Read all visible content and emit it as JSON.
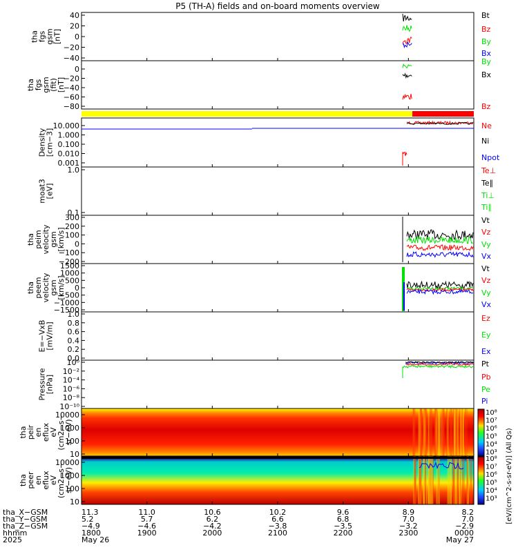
{
  "title": "P5 (TH-A) fields and on-board moments overview",
  "colors": {
    "black": "#000000",
    "red": "#ff0000",
    "green": "#00e000",
    "blue": "#0000ff",
    "yellow": "#ffff00"
  },
  "chart_data": [
    {
      "type": "line",
      "ylabel": "tha fgs gsm [nT]",
      "ylim": [
        -40,
        40
      ],
      "yticks": [
        "40",
        "20",
        "0",
        "−20",
        "−40"
      ],
      "legend": [
        {
          "label": "Bt",
          "color": "#000000"
        },
        {
          "label": "Bz",
          "color": "#ff0000"
        },
        {
          "label": "By",
          "color": "#00e000"
        },
        {
          "label": "Bx",
          "color": "#0000ff"
        }
      ]
    },
    {
      "type": "line",
      "ylabel": "tha fgs gsm (fit) [nT]",
      "ylim": [
        -90,
        10
      ],
      "yticks": [
        "0",
        "−20",
        "−40",
        "−60",
        "−80"
      ],
      "legend": [
        {
          "label": "By",
          "color": "#00e000"
        },
        {
          "label": "Bx",
          "color": "#000000"
        },
        {
          "label": "Bz",
          "color": "#ff0000"
        }
      ]
    },
    {
      "type": "bar",
      "ylabel": "",
      "segments": [
        {
          "from": "1800",
          "to": "2300",
          "color": "#ffff00"
        },
        {
          "from": "2300",
          "to": "0000",
          "color": "#ff0000"
        }
      ]
    },
    {
      "type": "line",
      "ylabel": "Density [cm-3]",
      "log": true,
      "yticks": [
        "10.000",
        "1.000",
        "0.100",
        "0.010",
        "0.001"
      ],
      "legend": [
        {
          "label": "Ne",
          "color": "#ff0000"
        },
        {
          "label": "Ni",
          "color": "#000000"
        },
        {
          "label": "Npot",
          "color": "#0000ff"
        }
      ]
    },
    {
      "type": "line",
      "ylabel": "moat3 [eV]",
      "log": true,
      "yticks": [
        "1.0",
        "0.1"
      ],
      "legend": [
        {
          "label": "Te⊥",
          "color": "#ff0000"
        },
        {
          "label": "Te∥",
          "color": "#000000"
        },
        {
          "label": "Ti⊥",
          "color": "#00e000"
        },
        {
          "label": "Ti∥",
          "color": "#00e000"
        }
      ]
    },
    {
      "type": "line",
      "ylabel": "tha peim velocity gsm [km/s]",
      "ylim": [
        -200,
        350
      ],
      "yticks": [
        "300",
        "200",
        "100",
        "0",
        "−100",
        "−200"
      ],
      "legend": [
        {
          "label": "Vt",
          "color": "#000000"
        },
        {
          "label": "Vz",
          "color": "#ff0000"
        },
        {
          "label": "Vy",
          "color": "#00e000"
        },
        {
          "label": "Vx",
          "color": "#0000ff"
        }
      ]
    },
    {
      "type": "line",
      "ylabel": "tha peem velocity gsm [km/s]",
      "ylim": [
        -1500,
        1500
      ],
      "yticks": [
        "1500",
        "1000",
        "500",
        "0",
        "−500",
        "−1000",
        "−1500"
      ],
      "legend": [
        {
          "label": "Vt",
          "color": "#000000"
        },
        {
          "label": "Vz",
          "color": "#ff0000"
        },
        {
          "label": "Vy",
          "color": "#00e000"
        },
        {
          "label": "Vx",
          "color": "#0000ff"
        }
      ]
    },
    {
      "type": "line",
      "ylabel": "E=−VxB [mV/m]",
      "ylim": [
        0,
        1
      ],
      "yticks": [
        "1.0",
        "0.8",
        "0.6",
        "0.4",
        "0.2",
        "0.0"
      ],
      "legend": [
        {
          "label": "Ez",
          "color": "#ff0000"
        },
        {
          "label": "Ey",
          "color": "#00e000"
        },
        {
          "label": "Ex",
          "color": "#0000ff"
        }
      ]
    },
    {
      "type": "line",
      "ylabel": "Pressure [nPa]",
      "log": true,
      "yticks": [
        "10⁰",
        "10⁻²",
        "10⁻⁴",
        "10⁻⁶",
        "10⁻⁸",
        "10⁻¹⁰"
      ],
      "legend": [
        {
          "label": "Pt",
          "color": "#000000"
        },
        {
          "label": "Pb",
          "color": "#ff0000"
        },
        {
          "label": "Pe",
          "color": "#00e000"
        },
        {
          "label": "Pi",
          "color": "#0000ff"
        }
      ]
    },
    {
      "type": "heatmap",
      "ylabel": "tha peir en eflux eV (cm2-s-sr-eV)",
      "log": true,
      "yticks": [
        "10000",
        "1000",
        "100",
        "10"
      ]
    },
    {
      "type": "heatmap",
      "ylabel": "tha peer en eflux eV (cm2-s-sr-eV)",
      "log": true,
      "yticks": [
        "10000",
        "1000",
        "100",
        "10"
      ]
    }
  ],
  "colorbar": {
    "label": "[eV/(cm^2-s-sr-eV)] (All Qs)",
    "ticks_top": [
      "10⁸",
      "10⁷",
      "10⁶",
      "10⁵",
      "10⁴",
      "10³"
    ],
    "ticks_bottom": [
      "10⁸",
      "10⁷",
      "10⁶",
      "10⁵",
      "10⁴",
      "10³"
    ]
  },
  "footer": {
    "row_labels": [
      "tha_X−GSM",
      "tha_Y−GSM",
      "tha_Z−GSM",
      "hhmm",
      "2025"
    ],
    "columns": [
      {
        "x": "11.3",
        "y": "5.2",
        "z": "−4.9",
        "t": "1800",
        "d": "May 26"
      },
      {
        "x": "11.0",
        "y": "5.7",
        "z": "−4.6",
        "t": "1900",
        "d": ""
      },
      {
        "x": "10.6",
        "y": "6.2",
        "z": "−4.2",
        "t": "2000",
        "d": ""
      },
      {
        "x": "10.2",
        "y": "6.6",
        "z": "−3.8",
        "t": "2100",
        "d": ""
      },
      {
        "x": "9.6",
        "y": "6.8",
        "z": "−3.5",
        "t": "2200",
        "d": ""
      },
      {
        "x": "8.9",
        "y": "7.0",
        "z": "−3.2",
        "t": "2300",
        "d": ""
      },
      {
        "x": "8.2",
        "y": "7.0",
        "z": "−2.9",
        "t": "0000",
        "d": "May 27"
      }
    ]
  }
}
